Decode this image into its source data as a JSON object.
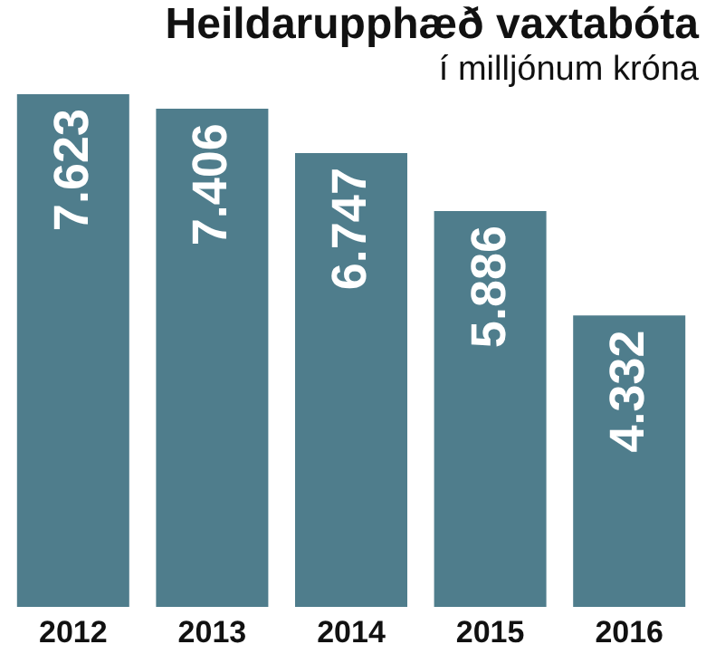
{
  "chart_data": {
    "type": "bar",
    "title": "Heildarupphæð vaxtabóta",
    "subtitle": "í milljónum króna",
    "categories": [
      "2012",
      "2013",
      "2014",
      "2015",
      "2016"
    ],
    "values": [
      7623,
      7406,
      6747,
      5886,
      4332
    ],
    "value_labels": [
      "7.623",
      "7.406",
      "6.747",
      "5.886",
      "4.332"
    ],
    "color": "#4f7d8c"
  }
}
